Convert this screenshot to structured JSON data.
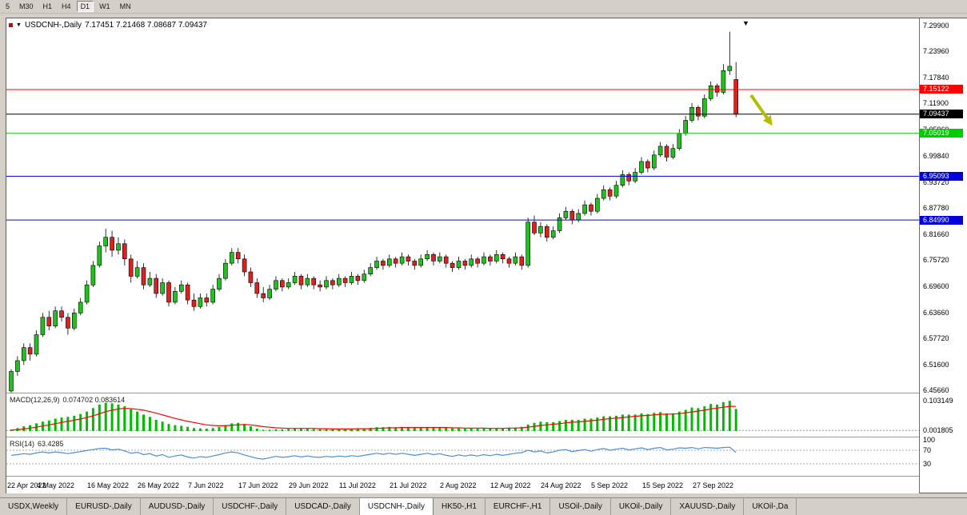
{
  "toolbar": {
    "timeframes": [
      "5",
      "M30",
      "H1",
      "H4",
      "D1",
      "W1",
      "MN"
    ],
    "active": "D1"
  },
  "chart": {
    "marker_icon": "▼",
    "symbol_title": "USDCNH-,Daily",
    "ohlc": "7.17451 7.21468 7.08687 7.09437",
    "sell_marker": "▼"
  },
  "colors": {
    "bull": "#21c21f",
    "bear": "#e01f1f",
    "candle_border": "#000000",
    "macd_hist": "#00bb00",
    "macd_signal": "#ff0000",
    "rsi_line": "#4a90d2",
    "arrow": "#b5bd00",
    "line_red": "#ff0000",
    "line_black": "#000000",
    "line_green": "#00cc00",
    "line_blue": "#0000dd"
  },
  "chart_data": {
    "type": "candlestick",
    "title": "USDCNH-,Daily",
    "current_ohlc": {
      "open": 7.17451,
      "high": 7.21468,
      "low": 7.08687,
      "close": 7.09437
    },
    "y_axis": {
      "min": 6.4566,
      "max": 7.299,
      "labels": [
        "7.29900",
        "7.23960",
        "7.17840",
        "7.11900",
        "7.05960",
        "6.99840",
        "6.93720",
        "6.87780",
        "6.81660",
        "6.75720",
        "6.69600",
        "6.63660",
        "6.57720",
        "6.51600",
        "6.45660"
      ]
    },
    "x_labels": [
      "22 Apr 2022",
      "4 May 2022",
      "16 May 2022",
      "26 May 2022",
      "7 Jun 2022",
      "17 Jun 2022",
      "29 Jun 2022",
      "11 Jul 2022",
      "21 Jul 2022",
      "2 Aug 2022",
      "12 Aug 2022",
      "24 Aug 2022",
      "5 Sep 2022",
      "15 Sep 2022",
      "27 Sep 2022"
    ],
    "candles": [
      [
        6.455,
        6.505,
        6.45,
        6.5
      ],
      [
        6.5,
        6.535,
        6.49,
        6.525
      ],
      [
        6.525,
        6.565,
        6.515,
        6.555
      ],
      [
        6.555,
        6.565,
        6.525,
        6.54
      ],
      [
        6.54,
        6.595,
        6.535,
        6.585
      ],
      [
        6.585,
        6.635,
        6.58,
        6.625
      ],
      [
        6.625,
        6.64,
        6.595,
        6.605
      ],
      [
        6.605,
        6.65,
        6.6,
        6.64
      ],
      [
        6.64,
        6.65,
        6.615,
        6.625
      ],
      [
        6.625,
        6.635,
        6.585,
        6.6
      ],
      [
        6.6,
        6.645,
        6.595,
        6.635
      ],
      [
        6.635,
        6.67,
        6.63,
        6.66
      ],
      [
        6.66,
        6.71,
        6.655,
        6.7
      ],
      [
        6.7,
        6.755,
        6.695,
        6.745
      ],
      [
        6.745,
        6.8,
        6.74,
        6.79
      ],
      [
        6.79,
        6.83,
        6.775,
        6.81
      ],
      [
        6.81,
        6.825,
        6.765,
        6.78
      ],
      [
        6.78,
        6.81,
        6.77,
        6.795
      ],
      [
        6.795,
        6.805,
        6.745,
        6.76
      ],
      [
        6.76,
        6.77,
        6.705,
        6.72
      ],
      [
        6.72,
        6.755,
        6.715,
        6.74
      ],
      [
        6.74,
        6.75,
        6.69,
        6.7
      ],
      [
        6.7,
        6.73,
        6.695,
        6.715
      ],
      [
        6.715,
        6.725,
        6.67,
        6.68
      ],
      [
        6.68,
        6.715,
        6.675,
        6.705
      ],
      [
        6.705,
        6.71,
        6.65,
        6.66
      ],
      [
        6.66,
        6.695,
        6.655,
        6.685
      ],
      [
        6.685,
        6.71,
        6.68,
        6.7
      ],
      [
        6.7,
        6.705,
        6.655,
        6.665
      ],
      [
        6.665,
        6.68,
        6.64,
        6.65
      ],
      [
        6.65,
        6.68,
        6.645,
        6.67
      ],
      [
        6.67,
        6.68,
        6.65,
        6.66
      ],
      [
        6.66,
        6.7,
        6.655,
        6.69
      ],
      [
        6.69,
        6.725,
        6.685,
        6.715
      ],
      [
        6.715,
        6.76,
        6.71,
        6.75
      ],
      [
        6.75,
        6.785,
        6.745,
        6.775
      ],
      [
        6.775,
        6.785,
        6.75,
        6.76
      ],
      [
        6.76,
        6.77,
        6.72,
        6.73
      ],
      [
        6.73,
        6.74,
        6.695,
        6.705
      ],
      [
        6.705,
        6.715,
        6.67,
        6.68
      ],
      [
        6.68,
        6.695,
        6.66,
        6.67
      ],
      [
        6.67,
        6.7,
        6.665,
        6.69
      ],
      [
        6.69,
        6.72,
        6.685,
        6.71
      ],
      [
        6.71,
        6.715,
        6.685,
        6.695
      ],
      [
        6.695,
        6.715,
        6.69,
        6.705
      ],
      [
        6.705,
        6.73,
        6.7,
        6.72
      ],
      [
        6.72,
        6.725,
        6.69,
        6.7
      ],
      [
        6.7,
        6.725,
        6.695,
        6.715
      ],
      [
        6.715,
        6.72,
        6.69,
        6.7
      ],
      [
        6.7,
        6.71,
        6.685,
        6.695
      ],
      [
        6.695,
        6.72,
        6.69,
        6.71
      ],
      [
        6.71,
        6.715,
        6.69,
        6.7
      ],
      [
        6.7,
        6.725,
        6.695,
        6.715
      ],
      [
        6.715,
        6.72,
        6.695,
        6.705
      ],
      [
        6.705,
        6.73,
        6.7,
        6.72
      ],
      [
        6.72,
        6.725,
        6.7,
        6.71
      ],
      [
        6.71,
        6.735,
        6.705,
        6.725
      ],
      [
        6.725,
        6.75,
        6.72,
        6.74
      ],
      [
        6.74,
        6.765,
        6.735,
        6.755
      ],
      [
        6.755,
        6.76,
        6.735,
        6.745
      ],
      [
        6.745,
        6.77,
        6.74,
        6.76
      ],
      [
        6.76,
        6.765,
        6.74,
        6.75
      ],
      [
        6.75,
        6.775,
        6.745,
        6.765
      ],
      [
        6.765,
        6.77,
        6.745,
        6.755
      ],
      [
        6.755,
        6.76,
        6.735,
        6.745
      ],
      [
        6.745,
        6.77,
        6.74,
        6.76
      ],
      [
        6.76,
        6.78,
        6.755,
        6.77
      ],
      [
        6.77,
        6.775,
        6.745,
        6.755
      ],
      [
        6.755,
        6.775,
        6.75,
        6.765
      ],
      [
        6.765,
        6.77,
        6.74,
        6.75
      ],
      [
        6.75,
        6.755,
        6.73,
        6.74
      ],
      [
        6.74,
        6.765,
        6.735,
        6.755
      ],
      [
        6.755,
        6.76,
        6.735,
        6.745
      ],
      [
        6.745,
        6.77,
        6.74,
        6.76
      ],
      [
        6.76,
        6.765,
        6.74,
        6.75
      ],
      [
        6.75,
        6.775,
        6.745,
        6.765
      ],
      [
        6.765,
        6.77,
        6.745,
        6.755
      ],
      [
        6.755,
        6.78,
        6.75,
        6.77
      ],
      [
        6.77,
        6.775,
        6.75,
        6.76
      ],
      [
        6.76,
        6.765,
        6.74,
        6.75
      ],
      [
        6.75,
        6.775,
        6.745,
        6.765
      ],
      [
        6.765,
        6.77,
        6.735,
        6.745
      ],
      [
        6.745,
        6.855,
        6.74,
        6.845
      ],
      [
        6.845,
        6.86,
        6.815,
        6.82
      ],
      [
        6.82,
        6.845,
        6.81,
        6.835
      ],
      [
        6.835,
        6.84,
        6.8,
        6.81
      ],
      [
        6.81,
        6.835,
        6.805,
        6.825
      ],
      [
        6.825,
        6.865,
        6.82,
        6.855
      ],
      [
        6.855,
        6.88,
        6.85,
        6.87
      ],
      [
        6.87,
        6.875,
        6.84,
        6.85
      ],
      [
        6.85,
        6.875,
        6.845,
        6.865
      ],
      [
        6.865,
        6.895,
        6.86,
        6.885
      ],
      [
        6.885,
        6.89,
        6.86,
        6.87
      ],
      [
        6.87,
        6.91,
        6.865,
        6.9
      ],
      [
        6.9,
        6.93,
        6.895,
        6.92
      ],
      [
        6.92,
        6.925,
        6.895,
        6.905
      ],
      [
        6.905,
        6.94,
        6.9,
        6.93
      ],
      [
        6.93,
        6.965,
        6.925,
        6.955
      ],
      [
        6.955,
        6.96,
        6.93,
        6.94
      ],
      [
        6.94,
        6.97,
        6.935,
        6.96
      ],
      [
        6.96,
        6.995,
        6.955,
        6.985
      ],
      [
        6.985,
        6.99,
        6.96,
        6.97
      ],
      [
        6.97,
        7.01,
        6.965,
        7.0
      ],
      [
        7.0,
        7.03,
        6.995,
        7.02
      ],
      [
        7.02,
        7.025,
        6.985,
        6.995
      ],
      [
        6.995,
        7.025,
        6.99,
        7.015
      ],
      [
        7.015,
        7.06,
        7.01,
        7.05
      ],
      [
        7.05,
        7.09,
        7.045,
        7.08
      ],
      [
        7.08,
        7.12,
        7.075,
        7.11
      ],
      [
        7.11,
        7.115,
        7.08,
        7.09
      ],
      [
        7.09,
        7.14,
        7.085,
        7.13
      ],
      [
        7.13,
        7.17,
        7.125,
        7.16
      ],
      [
        7.16,
        7.165,
        7.135,
        7.145
      ],
      [
        7.145,
        7.21,
        7.14,
        7.195
      ],
      [
        7.195,
        7.285,
        7.185,
        7.205
      ],
      [
        7.17451,
        7.21468,
        7.08687,
        7.09437
      ]
    ],
    "h_lines": [
      {
        "price": 7.15122,
        "label": "7.15122",
        "color": "#ff0000"
      },
      {
        "price": 7.09437,
        "label": "7.09437",
        "color": "#000000"
      },
      {
        "price": 7.05019,
        "label": "7.05019",
        "color": "#00cc00"
      },
      {
        "price": 6.95093,
        "label": "6.95093",
        "color": "#0000dd"
      },
      {
        "price": 6.8499,
        "label": "6.84990",
        "color": "#0000dd"
      }
    ],
    "indicators": {
      "macd": {
        "name": "MACD(12,26,9)",
        "values_text": "0.074702 0.083614",
        "axis_labels": [
          {
            "label": "0.103149",
            "value": 0.103149
          },
          {
            "label": "0.001805",
            "value": 0.001805
          }
        ],
        "hist": [
          0.005,
          0.01,
          0.016,
          0.02,
          0.026,
          0.032,
          0.036,
          0.042,
          0.046,
          0.048,
          0.052,
          0.058,
          0.066,
          0.078,
          0.09,
          0.096,
          0.094,
          0.09,
          0.084,
          0.074,
          0.066,
          0.056,
          0.048,
          0.038,
          0.032,
          0.024,
          0.02,
          0.018,
          0.014,
          0.01,
          0.009,
          0.008,
          0.01,
          0.014,
          0.02,
          0.026,
          0.028,
          0.024,
          0.016,
          0.008,
          0.004,
          0.004,
          0.006,
          0.006,
          0.007,
          0.009,
          0.008,
          0.008,
          0.007,
          0.006,
          0.006,
          0.006,
          0.007,
          0.007,
          0.008,
          0.008,
          0.009,
          0.011,
          0.013,
          0.013,
          0.014,
          0.013,
          0.014,
          0.013,
          0.012,
          0.012,
          0.013,
          0.012,
          0.012,
          0.011,
          0.009,
          0.009,
          0.008,
          0.009,
          0.008,
          0.009,
          0.009,
          0.01,
          0.009,
          0.01,
          0.012,
          0.014,
          0.022,
          0.028,
          0.032,
          0.03,
          0.03,
          0.034,
          0.038,
          0.038,
          0.038,
          0.042,
          0.042,
          0.046,
          0.05,
          0.05,
          0.052,
          0.056,
          0.056,
          0.056,
          0.06,
          0.058,
          0.062,
          0.064,
          0.06,
          0.06,
          0.066,
          0.072,
          0.08,
          0.078,
          0.084,
          0.092,
          0.09,
          0.098,
          0.103,
          0.075
        ],
        "signal": [
          0.003,
          0.005,
          0.007,
          0.01,
          0.013,
          0.017,
          0.021,
          0.025,
          0.029,
          0.033,
          0.037,
          0.041,
          0.046,
          0.052,
          0.059,
          0.066,
          0.071,
          0.075,
          0.077,
          0.076,
          0.074,
          0.071,
          0.066,
          0.061,
          0.055,
          0.049,
          0.043,
          0.038,
          0.033,
          0.029,
          0.025,
          0.021,
          0.019,
          0.018,
          0.018,
          0.02,
          0.021,
          0.022,
          0.021,
          0.018,
          0.015,
          0.013,
          0.011,
          0.01,
          0.009,
          0.009,
          0.009,
          0.009,
          0.009,
          0.008,
          0.008,
          0.007,
          0.007,
          0.007,
          0.007,
          0.008,
          0.008,
          0.008,
          0.009,
          0.01,
          0.011,
          0.011,
          0.012,
          0.012,
          0.012,
          0.012,
          0.012,
          0.012,
          0.012,
          0.012,
          0.011,
          0.011,
          0.01,
          0.01,
          0.01,
          0.01,
          0.009,
          0.009,
          0.009,
          0.01,
          0.01,
          0.011,
          0.013,
          0.016,
          0.019,
          0.021,
          0.023,
          0.025,
          0.028,
          0.03,
          0.031,
          0.033,
          0.035,
          0.037,
          0.04,
          0.042,
          0.044,
          0.046,
          0.048,
          0.05,
          0.052,
          0.053,
          0.055,
          0.057,
          0.057,
          0.058,
          0.059,
          0.062,
          0.065,
          0.068,
          0.071,
          0.075,
          0.078,
          0.081,
          0.084,
          0.0836
        ]
      },
      "rsi": {
        "name": "RSI(14)",
        "value_text": "63.4285",
        "axis_labels": [
          {
            "label": "100",
            "value": 100
          },
          {
            "label": "70",
            "value": 70
          },
          {
            "label": "30",
            "value": 30
          }
        ],
        "levels": [
          70,
          30
        ],
        "values": [
          55,
          57,
          60,
          58,
          62,
          65,
          62,
          65,
          63,
          60,
          63,
          66,
          69,
          72,
          75,
          76,
          71,
          73,
          68,
          61,
          64,
          57,
          60,
          53,
          57,
          49,
          53,
          56,
          50,
          47,
          51,
          49,
          53,
          57,
          62,
          65,
          62,
          56,
          51,
          46,
          44,
          48,
          52,
          49,
          51,
          54,
          50,
          53,
          50,
          49,
          52,
          50,
          53,
          51,
          54,
          52,
          55,
          58,
          61,
          58,
          61,
          58,
          61,
          58,
          55,
          58,
          61,
          57,
          60,
          55,
          52,
          56,
          53,
          56,
          53,
          57,
          54,
          58,
          55,
          58,
          61,
          63,
          70,
          65,
          68,
          62,
          65,
          70,
          72,
          66,
          69,
          72,
          67,
          72,
          75,
          70,
          73,
          76,
          71,
          74,
          77,
          72,
          76,
          78,
          71,
          73,
          77,
          76,
          78,
          74,
          78,
          77,
          76,
          78,
          79,
          63.4
        ]
      }
    },
    "annotations": [
      {
        "type": "arrow",
        "direction": "down-right",
        "color": "#b5bd00"
      },
      {
        "type": "triangle-marker",
        "color": "#000000"
      }
    ]
  },
  "tabs": {
    "items": [
      "USDX,Weekly",
      "EURUSD-,Daily",
      "AUDUSD-,Daily",
      "USDCHF-,Daily",
      "USDCAD-,Daily",
      "USDCNH-,Daily",
      "HK50-,H1",
      "EURCHF-,H1",
      "USOil-,Daily",
      "UKOil-,Daily",
      "XAUUSD-,Daily",
      "UKOil-,Da"
    ],
    "active_index": 5
  }
}
